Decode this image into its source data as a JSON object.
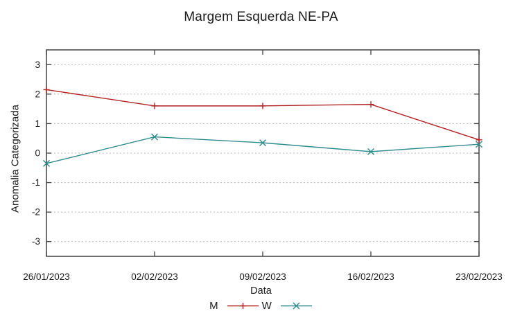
{
  "title": "Margem Esquerda NE-PA",
  "chart_data": {
    "type": "line",
    "title": "Margem Esquerda NE-PA",
    "xlabel": "Data",
    "ylabel": "Anomalia Categorizada",
    "categories": [
      "26/01/2023",
      "02/02/2023",
      "09/02/2023",
      "16/02/2023",
      "23/02/2023"
    ],
    "series": [
      {
        "name": "M",
        "color": "#b22222",
        "marker": "plus",
        "values": [
          2.15,
          1.6,
          1.6,
          1.65,
          0.45
        ]
      },
      {
        "name": "W",
        "color": "#2e8b8b",
        "marker": "cross",
        "values": [
          -0.35,
          0.55,
          0.35,
          0.05,
          0.3
        ]
      }
    ],
    "yticks": [
      -3,
      -2,
      -1,
      0,
      1,
      2,
      3
    ],
    "ylim": [
      -3.5,
      3.5
    ],
    "grid": "horizontal-dotted",
    "legend_position": "bottom-center",
    "axis_color": "#404040",
    "grid_color": "#b8b8b8"
  }
}
